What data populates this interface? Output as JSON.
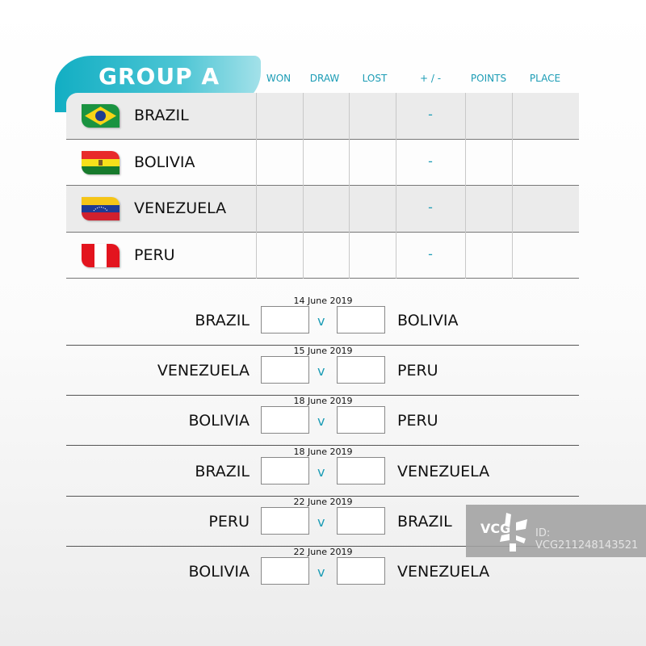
{
  "group": {
    "title": "GROUP A"
  },
  "columns": [
    "WON",
    "DRAW",
    "LOST",
    "+ / -",
    "POINTS",
    "PLACE"
  ],
  "standings": [
    {
      "team": "BRAZIL",
      "flag": "brazil-flag",
      "diff": "-"
    },
    {
      "team": "BOLIVIA",
      "flag": "bolivia-flag",
      "diff": "-"
    },
    {
      "team": "VENEZUELA",
      "flag": "venezuela-flag",
      "diff": "-"
    },
    {
      "team": "PERU",
      "flag": "peru-flag",
      "diff": "-"
    }
  ],
  "matches": [
    {
      "date": "14 June 2019",
      "home": "BRAZIL",
      "away": "BOLIVIA",
      "vs": "v"
    },
    {
      "date": "15 June 2019",
      "home": "VENEZUELA",
      "away": "PERU",
      "vs": "v"
    },
    {
      "date": "18 June 2019",
      "home": "BOLIVIA",
      "away": "PERU",
      "vs": "v"
    },
    {
      "date": "18 June 2019",
      "home": "BRAZIL",
      "away": "VENEZUELA",
      "vs": "v"
    },
    {
      "date": "22 June 2019",
      "home": "PERU",
      "away": "BRAZIL",
      "vs": "v"
    },
    {
      "date": "22 June 2019",
      "home": "BOLIVIA",
      "away": "VENEZUELA",
      "vs": "v"
    }
  ],
  "watermark": {
    "logo": "VCG",
    "id": "ID: VCG211248143521"
  },
  "colors": {
    "accent": "#1b9cb5",
    "banner": "#12aec3"
  }
}
